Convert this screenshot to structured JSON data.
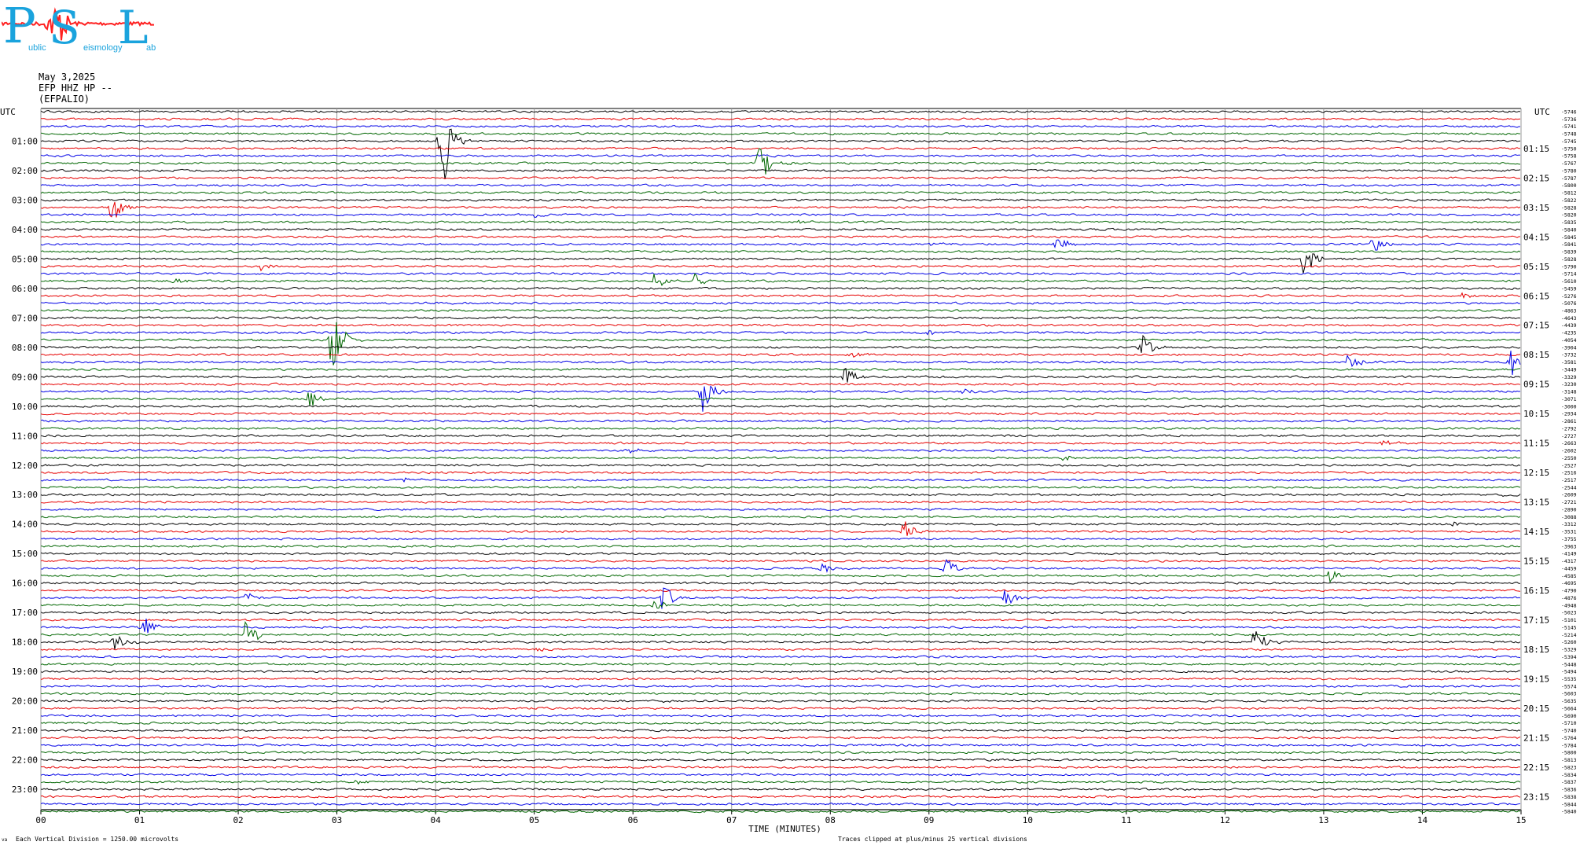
{
  "logo": {
    "letters": [
      "P",
      "S",
      "L"
    ],
    "words": [
      "ublic",
      "eismology",
      "ab"
    ],
    "colors": {
      "letters": "#1aa3dd",
      "wave": "#ff2020",
      "words": "#1aa3dd"
    }
  },
  "header": {
    "date": "May 3,2025",
    "station": "EFP HHZ HP --",
    "name": "(EFPALIO)"
  },
  "chart_data": {
    "type": "line",
    "title": "",
    "utc_label": "UTC",
    "xlabel": "TIME (MINUTES)",
    "xlim": [
      0,
      15
    ],
    "x_ticks": [
      "00",
      "01",
      "02",
      "03",
      "04",
      "05",
      "06",
      "07",
      "08",
      "09",
      "10",
      "11",
      "12",
      "13",
      "14",
      "15"
    ],
    "left_hour_labels": [
      "01:00",
      "02:00",
      "03:00",
      "04:00",
      "05:00",
      "06:00",
      "07:00",
      "08:00",
      "09:00",
      "10:00",
      "11:00",
      "12:00",
      "13:00",
      "14:00",
      "15:00",
      "16:00",
      "17:00",
      "18:00",
      "19:00",
      "20:00",
      "21:00",
      "22:00",
      "23:00"
    ],
    "right_hour_labels": [
      "01:15",
      "02:15",
      "03:15",
      "04:15",
      "05:15",
      "06:15",
      "07:15",
      "08:15",
      "09:15",
      "10:15",
      "11:15",
      "12:15",
      "13:15",
      "14:15",
      "15:15",
      "16:15",
      "17:15",
      "18:15",
      "19:15",
      "20:15",
      "21:15",
      "22:15",
      "23:15"
    ],
    "trace_count": 96,
    "minutes_per_trace": 15,
    "trace_colors": [
      "#000000",
      "#e60000",
      "#0000e6",
      "#006600"
    ],
    "offsets": [
      -5746,
      -5736,
      -5741,
      -5748,
      -5745,
      -5750,
      -5758,
      -5767,
      -5780,
      -5787,
      -5800,
      -5812,
      -5822,
      -5828,
      -5820,
      -5835,
      -5840,
      -5845,
      -5841,
      -5839,
      -5828,
      -5790,
      -5714,
      -5610,
      -5459,
      -5276,
      -5076,
      -4863,
      -4643,
      -4439,
      -4235,
      -4054,
      -3904,
      -3732,
      -3581,
      -3449,
      -3329,
      -3230,
      -3148,
      -3071,
      -3000,
      -2934,
      -2861,
      -2792,
      -2727,
      -2663,
      -2602,
      -2550,
      -2527,
      -2516,
      -2517,
      -2544,
      -2609,
      -2721,
      -2890,
      -3088,
      -3312,
      -3531,
      -3755,
      -3963,
      -4149,
      -4317,
      -4459,
      -4585,
      -4695,
      -4790,
      -4876,
      -4948,
      -5023,
      -5101,
      -5145,
      -5214,
      -5260,
      -5329,
      -5394,
      -5448,
      -5494,
      -5535,
      -5574,
      -5603,
      -5635,
      -5664,
      -5690,
      -5710,
      -5740,
      -5764,
      -5784,
      -5800,
      -5813,
      -5823,
      -5834,
      -5837,
      -5836,
      -5838,
      -5844,
      -5840
    ],
    "events": [
      {
        "trace": 4,
        "minute": 4.05,
        "amplitude": 85
      },
      {
        "trace": 7,
        "minute": 7.28,
        "amplitude": 30
      },
      {
        "trace": 13,
        "minute": 0.72,
        "amplitude": 22
      },
      {
        "trace": 14,
        "minute": 5.02,
        "amplitude": 6
      },
      {
        "trace": 15,
        "minute": 7.7,
        "amplitude": 4
      },
      {
        "trace": 18,
        "minute": 10.28,
        "amplitude": 14
      },
      {
        "trace": 18,
        "minute": 13.5,
        "amplitude": 14
      },
      {
        "trace": 18,
        "minute": 9.0,
        "amplitude": 4
      },
      {
        "trace": 20,
        "minute": 12.8,
        "amplitude": 24
      },
      {
        "trace": 21,
        "minute": 2.22,
        "amplitude": 5
      },
      {
        "trace": 23,
        "minute": 1.35,
        "amplitude": 7
      },
      {
        "trace": 23,
        "minute": 6.22,
        "amplitude": 12
      },
      {
        "trace": 23,
        "minute": 6.62,
        "amplitude": 10
      },
      {
        "trace": 25,
        "minute": 14.4,
        "amplitude": 5
      },
      {
        "trace": 31,
        "minute": 2.95,
        "amplitude": 50
      },
      {
        "trace": 30,
        "minute": 9.0,
        "amplitude": 3
      },
      {
        "trace": 32,
        "minute": 11.15,
        "amplitude": 18
      },
      {
        "trace": 33,
        "minute": 8.22,
        "amplitude": 4
      },
      {
        "trace": 34,
        "minute": 13.25,
        "amplitude": 11
      },
      {
        "trace": 34,
        "minute": 14.9,
        "amplitude": 20
      },
      {
        "trace": 36,
        "minute": 8.15,
        "amplitude": 14
      },
      {
        "trace": 38,
        "minute": 6.7,
        "amplitude": 30
      },
      {
        "trace": 38,
        "minute": 9.35,
        "amplitude": 4
      },
      {
        "trace": 39,
        "minute": 2.72,
        "amplitude": 16
      },
      {
        "trace": 45,
        "minute": 13.6,
        "amplitude": 5
      },
      {
        "trace": 46,
        "minute": 5.95,
        "amplitude": 4
      },
      {
        "trace": 47,
        "minute": 10.35,
        "amplitude": 5
      },
      {
        "trace": 50,
        "minute": 3.7,
        "amplitude": 4
      },
      {
        "trace": 52,
        "minute": 14.8,
        "amplitude": 3
      },
      {
        "trace": 57,
        "minute": 8.75,
        "amplitude": 16
      },
      {
        "trace": 56,
        "minute": 14.3,
        "amplitude": 4
      },
      {
        "trace": 62,
        "minute": 7.92,
        "amplitude": 11
      },
      {
        "trace": 62,
        "minute": 9.15,
        "amplitude": 20
      },
      {
        "trace": 63,
        "minute": 13.05,
        "amplitude": 10
      },
      {
        "trace": 66,
        "minute": 2.08,
        "amplitude": 9
      },
      {
        "trace": 66,
        "minute": 9.78,
        "amplitude": 14
      },
      {
        "trace": 66,
        "minute": 6.3,
        "amplitude": 24
      },
      {
        "trace": 67,
        "minute": 6.22,
        "amplitude": 9
      },
      {
        "trace": 70,
        "minute": 1.02,
        "amplitude": 22
      },
      {
        "trace": 71,
        "minute": 2.08,
        "amplitude": 22
      },
      {
        "trace": 72,
        "minute": 0.75,
        "amplitude": 16
      },
      {
        "trace": 72,
        "minute": 12.3,
        "amplitude": 22
      },
      {
        "trace": 73,
        "minute": 5.0,
        "amplitude": 3
      },
      {
        "trace": 80,
        "minute": 6.28,
        "amplitude": 3
      },
      {
        "trace": 91,
        "minute": 3.2,
        "amplitude": 3
      }
    ]
  },
  "footer": {
    "division_note": "Each Vertical Division = 1250.00 microvolts",
    "clip_note": "Traces clipped at plus/minus 25 vertical divisions",
    "corner_mark": "va"
  }
}
